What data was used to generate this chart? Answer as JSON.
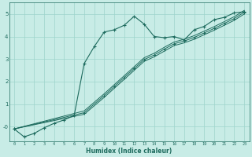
{
  "xlabel": "Humidex (Indice chaleur)",
  "bg_color": "#c8ece6",
  "grid_color": "#9dd4cc",
  "line_color": "#1e6b5e",
  "xlim": [
    -0.5,
    23.5
  ],
  "ylim": [
    -0.65,
    5.5
  ],
  "xticks": [
    0,
    1,
    2,
    3,
    4,
    5,
    6,
    7,
    8,
    9,
    10,
    11,
    12,
    13,
    14,
    15,
    16,
    17,
    18,
    19,
    20,
    21,
    22,
    23
  ],
  "yticks": [
    0,
    1,
    2,
    3,
    4,
    5
  ],
  "series1_x": [
    0,
    1,
    2,
    3,
    4,
    5,
    6,
    7,
    8,
    9,
    10,
    11,
    12,
    13,
    14,
    15,
    16,
    17,
    18,
    19,
    20,
    21,
    22,
    23
  ],
  "series1_y": [
    -0.1,
    -0.45,
    -0.3,
    -0.05,
    0.15,
    0.3,
    0.5,
    2.8,
    3.55,
    4.2,
    4.3,
    4.5,
    4.9,
    4.55,
    4.0,
    3.95,
    4.0,
    3.85,
    4.3,
    4.45,
    4.75,
    4.85,
    5.05,
    5.1
  ],
  "series2_x": [
    0,
    7,
    9,
    10,
    11,
    12,
    13,
    14,
    15,
    16,
    17,
    18,
    19,
    20,
    21,
    22,
    23
  ],
  "series2_y": [
    -0.1,
    0.55,
    1.3,
    1.7,
    2.1,
    2.5,
    2.9,
    3.1,
    3.35,
    3.6,
    3.72,
    3.88,
    4.08,
    4.28,
    4.5,
    4.72,
    5.0
  ],
  "series3_x": [
    0,
    7,
    9,
    10,
    11,
    12,
    13,
    14,
    15,
    16,
    17,
    18,
    19,
    20,
    21,
    22,
    23
  ],
  "series3_y": [
    -0.1,
    0.62,
    1.38,
    1.78,
    2.18,
    2.58,
    2.98,
    3.18,
    3.44,
    3.68,
    3.8,
    3.96,
    4.16,
    4.36,
    4.58,
    4.8,
    5.08
  ],
  "series4_x": [
    0,
    7,
    9,
    10,
    11,
    12,
    13,
    14,
    15,
    16,
    17,
    18,
    19,
    20,
    21,
    22,
    23
  ],
  "series4_y": [
    -0.1,
    0.7,
    1.46,
    1.86,
    2.26,
    2.66,
    3.06,
    3.26,
    3.52,
    3.76,
    3.88,
    4.04,
    4.24,
    4.44,
    4.66,
    4.88,
    5.16
  ]
}
